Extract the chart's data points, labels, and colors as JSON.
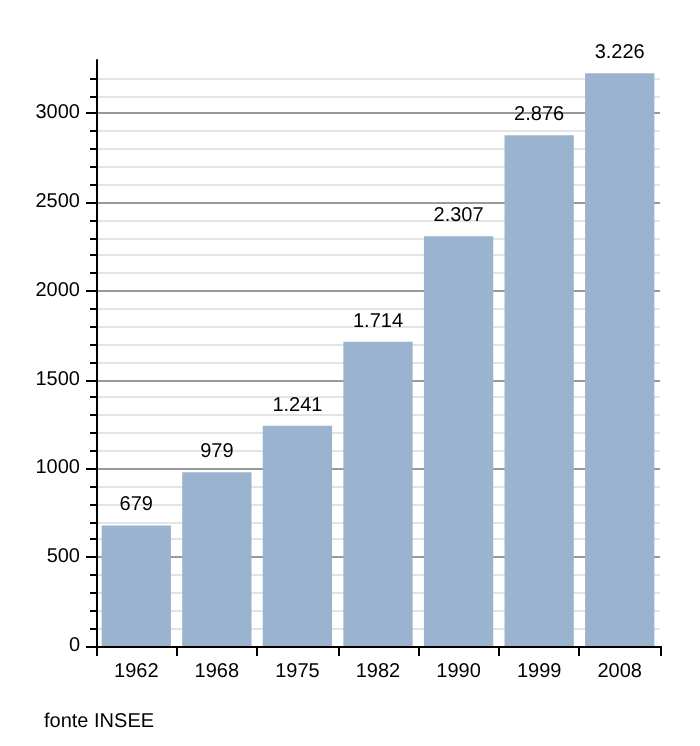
{
  "chart_data": {
    "type": "bar",
    "categories": [
      "1962",
      "1968",
      "1975",
      "1982",
      "1990",
      "1999",
      "2008"
    ],
    "values": [
      679,
      979,
      1241,
      1714,
      2307,
      2876,
      3226
    ],
    "value_labels": [
      "679",
      "979",
      "1.241",
      "1.714",
      "2.307",
      "2.876",
      "3.226"
    ],
    "color": "#9ab3ce",
    "ylim": [
      0,
      3300
    ],
    "yticks": [
      0,
      500,
      1000,
      1500,
      2000,
      2500,
      3000
    ],
    "grid": "y",
    "annotations": [
      "fonte INSEE"
    ]
  }
}
